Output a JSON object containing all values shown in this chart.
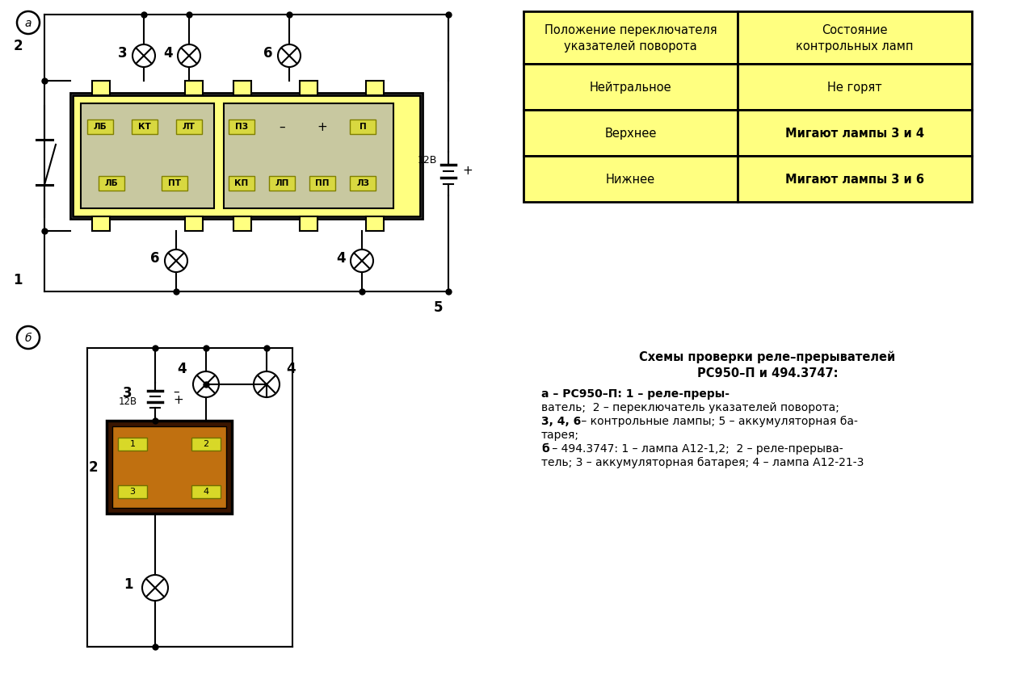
{
  "bg_color": "#ffffff",
  "yellow": "#ffff80",
  "relay_inner_a": "#c8c8a0",
  "relay_color_b": "#c07010",
  "relay_dark_b": "#3a1500",
  "contact_yellow": "#d8d840",
  "table_yellow": "#ffff80",
  "table_header_col1": "Положение переключателя\nуказателей поворота",
  "table_header_col2": "Состояние\nконтрольных ламп",
  "table_rows": [
    [
      "Нейтральное",
      "Не горят"
    ],
    [
      "Верхнее",
      "Мигают лампы 3 и 4"
    ],
    [
      "Нижнее",
      "Мигают лампы 3 и 6"
    ]
  ],
  "table_row2_bold": [
    false,
    true
  ],
  "table_row3_bold": [
    false,
    true
  ]
}
